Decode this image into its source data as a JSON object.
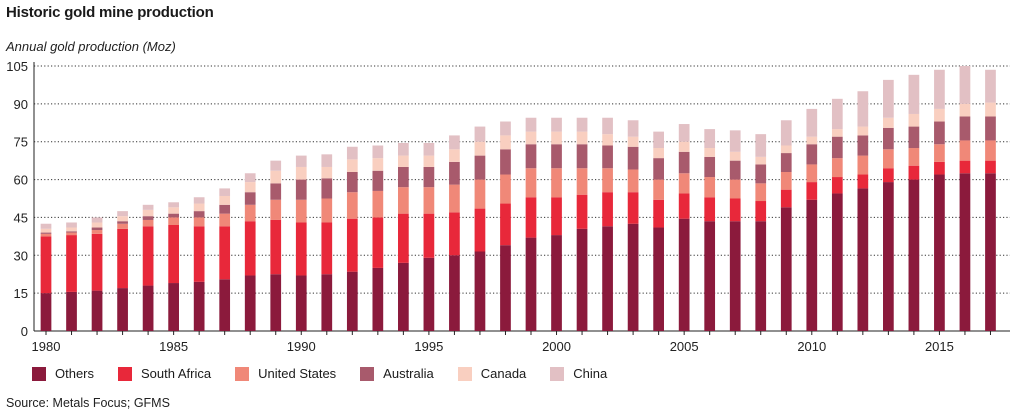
{
  "chart_data": {
    "type": "bar",
    "stacked": true,
    "title": "Historic gold mine production",
    "ylabel": "Annual gold production (Moz)",
    "xlabel": "",
    "ylim": [
      0,
      105
    ],
    "yticks": [
      0,
      15,
      30,
      45,
      60,
      75,
      90,
      105
    ],
    "xticks": [
      1980,
      1985,
      1990,
      1995,
      2000,
      2005,
      2010,
      2015
    ],
    "grid": "horizontal dotted",
    "legend_position": "bottom",
    "categories": [
      1980,
      1981,
      1982,
      1983,
      1984,
      1985,
      1986,
      1987,
      1988,
      1989,
      1990,
      1991,
      1992,
      1993,
      1994,
      1995,
      1996,
      1997,
      1998,
      1999,
      2000,
      2001,
      2002,
      2003,
      2004,
      2005,
      2006,
      2007,
      2008,
      2009,
      2010,
      2011,
      2012,
      2013,
      2014,
      2015,
      2016,
      2017
    ],
    "series": [
      {
        "name": "Others",
        "color": "#8b1a3c",
        "values": [
          15,
          15.5,
          16,
          17,
          18,
          19,
          19.5,
          20.5,
          22,
          22.5,
          22,
          22.5,
          23.5,
          25,
          27,
          29,
          30,
          31.5,
          34,
          37,
          38,
          40.5,
          41.5,
          42.5,
          41,
          44.5,
          43.5,
          43.5,
          43.5,
          49,
          52,
          54.5,
          56.5,
          59,
          60,
          62,
          62.5,
          62.5
        ]
      },
      {
        "name": "South Africa",
        "color": "#e8283a",
        "values": [
          22.5,
          22.5,
          22.5,
          23.5,
          23.5,
          23,
          22,
          21,
          21.5,
          21.5,
          21,
          20.5,
          21,
          20,
          19.5,
          17.5,
          17,
          17,
          16.5,
          16,
          15,
          13.5,
          13.5,
          12.5,
          11,
          10,
          9.5,
          9,
          8,
          7,
          7,
          6.5,
          5.5,
          5.5,
          5.5,
          5,
          5,
          5
        ]
      },
      {
        "name": "United States",
        "color": "#f08878",
        "values": [
          1,
          1,
          1.5,
          2,
          2.5,
          3,
          3.5,
          5,
          6.5,
          8,
          9,
          9.5,
          10.5,
          10.5,
          10.5,
          10.5,
          11,
          11.5,
          11.5,
          11.5,
          11.5,
          10.5,
          9.5,
          9,
          8,
          8,
          8,
          7.5,
          7,
          7,
          7,
          7.5,
          7.5,
          7.5,
          7,
          7,
          8,
          8
        ]
      },
      {
        "name": "Australia",
        "color": "#a85a6c",
        "values": [
          0.5,
          0.5,
          1,
          1,
          1.5,
          1.5,
          2.5,
          3.5,
          5,
          6.5,
          8,
          8,
          8,
          8,
          8,
          8,
          9,
          9.5,
          10,
          9.5,
          9.5,
          9.5,
          9,
          9,
          8.5,
          8.5,
          8,
          7.5,
          7.5,
          7.5,
          8,
          8.5,
          8,
          8.5,
          8.5,
          9,
          9.5,
          9.5
        ]
      },
      {
        "name": "Canada",
        "color": "#f9cfc0",
        "values": [
          1.5,
          1.5,
          2,
          2,
          2.5,
          2.5,
          3,
          3.5,
          4,
          5,
          5,
          4.5,
          5,
          5,
          4.5,
          4.5,
          5,
          5.5,
          5.5,
          5,
          5,
          5,
          4.5,
          4,
          4,
          4,
          3.5,
          3.5,
          3,
          3,
          3,
          3,
          3.5,
          4,
          5,
          5,
          5,
          5.5
        ]
      },
      {
        "name": "China",
        "color": "#e2c0c4",
        "values": [
          2,
          2,
          2,
          2,
          2,
          2,
          2.5,
          3,
          3.5,
          4,
          4.5,
          5,
          5,
          5,
          5,
          5,
          5.5,
          6,
          5.5,
          5.5,
          5.5,
          5.5,
          6.5,
          6.5,
          6.5,
          7,
          7.5,
          8.5,
          9,
          10,
          11,
          12,
          14,
          15,
          15.5,
          15.5,
          15,
          13
        ]
      }
    ]
  },
  "source": "Source: Metals Focus; GFMS"
}
